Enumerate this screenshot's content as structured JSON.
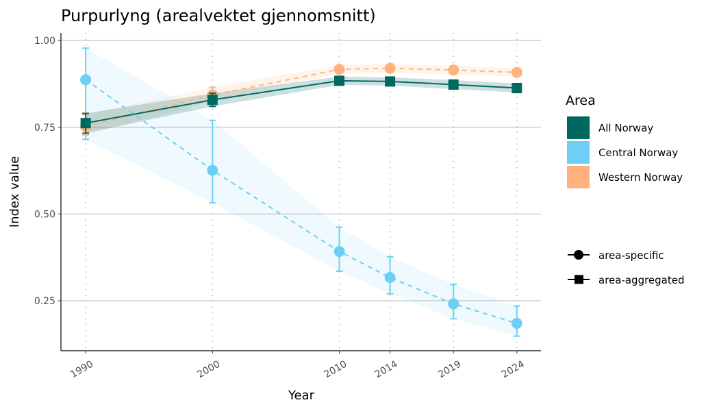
{
  "chart_data": {
    "type": "line",
    "title": "Purpurlyng (arealvektet gjennomsnitt)",
    "xlabel": "Year",
    "ylabel": "Index value",
    "x": [
      1990,
      2000,
      2010,
      2014,
      2019,
      2024
    ],
    "x_tick_labels": [
      "1990",
      "2000",
      "2010",
      "2014",
      "2019",
      "2024"
    ],
    "y_ticks": [
      0.25,
      0.5,
      0.75,
      1.0
    ],
    "y_tick_labels": [
      "0.25",
      "0.50",
      "0.75",
      "1.00"
    ],
    "xlim": [
      1988.05,
      2025.9
    ],
    "ylim": [
      0.106,
      1.022
    ],
    "grid": "horizontal major",
    "legend_title": "Area",
    "legend_placement": "right",
    "series": [
      {
        "name": "All Norway",
        "color": "#00695F",
        "shape": "square",
        "line": "solid",
        "values": [
          0.762,
          0.829,
          0.884,
          0.882,
          0.873,
          0.863
        ],
        "lower": [
          0.733,
          0.81,
          0.872,
          0.87,
          0.86,
          0.85
        ],
        "upper": [
          0.79,
          0.848,
          0.896,
          0.894,
          0.886,
          0.876
        ]
      },
      {
        "name": "Central Norway",
        "color": "#6DCFF6",
        "shape": "circle",
        "line": "dashed",
        "values": [
          0.887,
          0.626,
          0.392,
          0.317,
          0.241,
          0.185
        ],
        "lower": [
          0.715,
          0.532,
          0.335,
          0.27,
          0.198,
          0.148
        ],
        "upper": [
          0.978,
          0.77,
          0.462,
          0.377,
          0.297,
          0.235
        ]
      },
      {
        "name": "Western Norway",
        "color": "#FFB27E",
        "shape": "circle",
        "line": "dashed",
        "values": [
          0.752,
          0.843,
          0.917,
          0.92,
          0.915,
          0.908
        ],
        "lower": [
          0.728,
          0.825,
          0.905,
          0.908,
          0.903,
          0.896
        ],
        "upper": [
          0.787,
          0.865,
          0.929,
          0.932,
          0.927,
          0.92
        ]
      }
    ],
    "shape_legend": [
      {
        "label": "area-specific",
        "shape": "circle"
      },
      {
        "label": "area-aggregated",
        "shape": "square"
      }
    ]
  }
}
